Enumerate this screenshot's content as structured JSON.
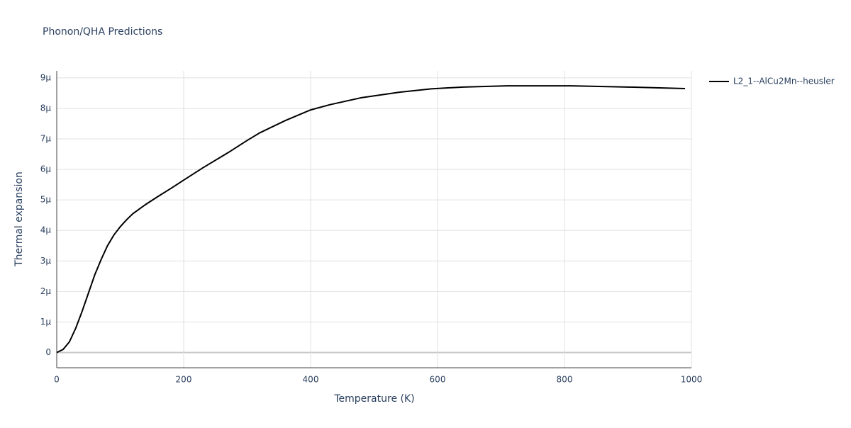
{
  "chart_data": {
    "type": "line",
    "title": "Phonon/QHA Predictions",
    "x_label": "Temperature (K)",
    "y_label": "Thermal expansion",
    "x": [
      0,
      10,
      20,
      30,
      40,
      50,
      60,
      70,
      80,
      90,
      100,
      110,
      120,
      140,
      160,
      180,
      200,
      230,
      270,
      300,
      320,
      360,
      400,
      430,
      480,
      540,
      590,
      640,
      710,
      810,
      900,
      990
    ],
    "series": [
      {
        "name": "L2_1--AlCu2Mn--heusler",
        "color": "#000000",
        "values": [
          0,
          1e-07,
          3.5e-07,
          8e-07,
          1.35e-06,
          1.95e-06,
          2.55e-06,
          3.05e-06,
          3.5e-06,
          3.85e-06,
          4.12e-06,
          4.35e-06,
          4.55e-06,
          4.85e-06,
          5.12e-06,
          5.38e-06,
          5.65e-06,
          6.05e-06,
          6.55e-06,
          6.95e-06,
          7.2e-06,
          7.6e-06,
          7.95e-06,
          8.12e-06,
          8.35e-06,
          8.53e-06,
          8.64e-06,
          8.7e-06,
          8.74e-06,
          8.74e-06,
          8.7e-06,
          8.65e-06
        ]
      }
    ],
    "xlim": [
      0,
      1000
    ],
    "xticks": [
      0,
      200,
      400,
      600,
      800,
      1000
    ],
    "ylim": [
      -5e-07,
      9.23e-06
    ],
    "yticks": [
      0,
      {
        "value": 1e-06,
        "label": "1μ"
      },
      {
        "value": 2e-06,
        "label": "2μ"
      },
      {
        "value": 3e-06,
        "label": "3μ"
      },
      {
        "value": 4e-06,
        "label": "4μ"
      },
      {
        "value": 5e-06,
        "label": "5μ"
      },
      {
        "value": 6e-06,
        "label": "6μ"
      },
      {
        "value": 7e-06,
        "label": "7μ"
      },
      {
        "value": 8e-06,
        "label": "8μ"
      },
      {
        "value": 9e-06,
        "label": "9μ"
      }
    ],
    "grid": true,
    "legend": "right"
  }
}
